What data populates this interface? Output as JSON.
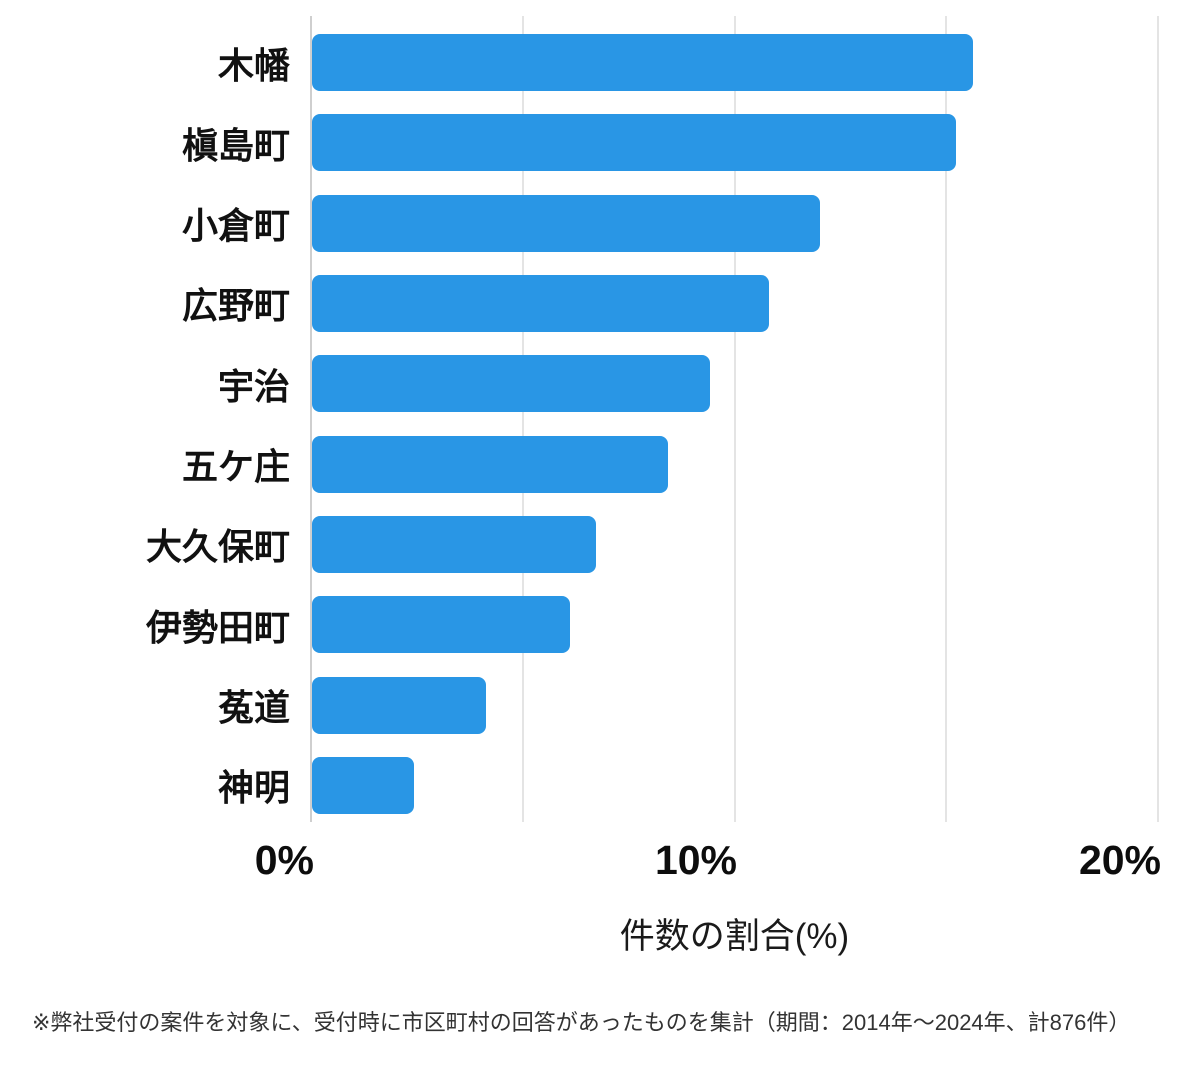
{
  "chart_data": {
    "type": "bar",
    "orientation": "horizontal",
    "title": "",
    "categories": [
      "木幡",
      "槇島町",
      "小倉町",
      "広野町",
      "宇治",
      "五ケ庄",
      "大久保町",
      "伊勢田町",
      "菟道",
      "神明"
    ],
    "values": [
      15.6,
      15.2,
      12.0,
      10.8,
      9.4,
      8.4,
      6.7,
      6.1,
      4.1,
      2.4
    ],
    "value_unit": "%",
    "xlabel": "件数の割合(%)",
    "x_ticks": [
      "0%",
      "10%",
      "20%"
    ],
    "xlim": [
      0,
      20
    ],
    "grid": true,
    "gridline_interval_pct": 5,
    "legend": false,
    "bar_color": "#2996E5",
    "gridline_color": "#e4e4e4",
    "text_color": "#111111",
    "footnote": "※弊社受付の案件を対象に、受付時に市区町村の回答があったものを集計（期間：2014年～2024年、計876件）"
  }
}
